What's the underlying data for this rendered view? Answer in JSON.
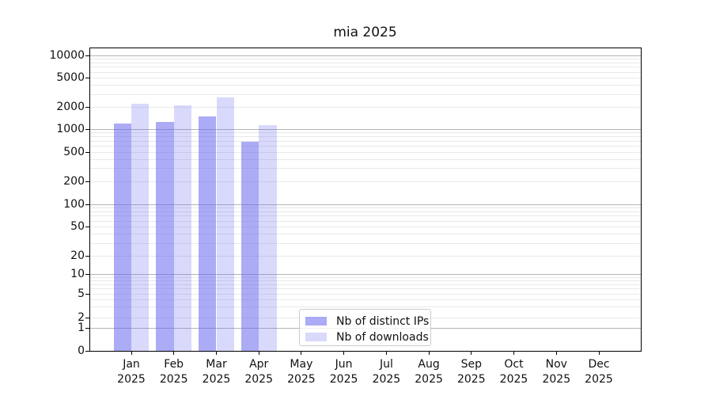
{
  "chart_data": {
    "type": "bar",
    "title": "mia 2025",
    "x_months": [
      "Jan",
      "Feb",
      "Mar",
      "Apr",
      "May",
      "Jun",
      "Jul",
      "Aug",
      "Sep",
      "Oct",
      "Nov",
      "Dec"
    ],
    "x_year": "2025",
    "series": [
      {
        "name": "Nb of distinct IPs",
        "color": "rgba(102,102,238,0.55)",
        "values": [
          1200,
          1260,
          1480,
          680,
          null,
          null,
          null,
          null,
          null,
          null,
          null,
          null
        ]
      },
      {
        "name": "Nb of downloads",
        "color": "rgba(102,102,238,0.25)",
        "values": [
          2230,
          2130,
          2710,
          1120,
          null,
          null,
          null,
          null,
          null,
          null,
          null,
          null
        ]
      }
    ],
    "yscale": "symlog",
    "yticks": [
      0,
      1,
      2,
      5,
      10,
      20,
      50,
      100,
      200,
      500,
      1000,
      2000,
      5000,
      10000
    ],
    "ylim": [
      0,
      12750
    ],
    "grid": true,
    "legend_position": "lower center"
  },
  "style": {
    "grid_major_color": "#b4b4b4",
    "grid_minor_color": "#e9e9e9",
    "axis_color": "#000000",
    "legend_border_color": "#cccccc",
    "background": "#ffffff"
  }
}
